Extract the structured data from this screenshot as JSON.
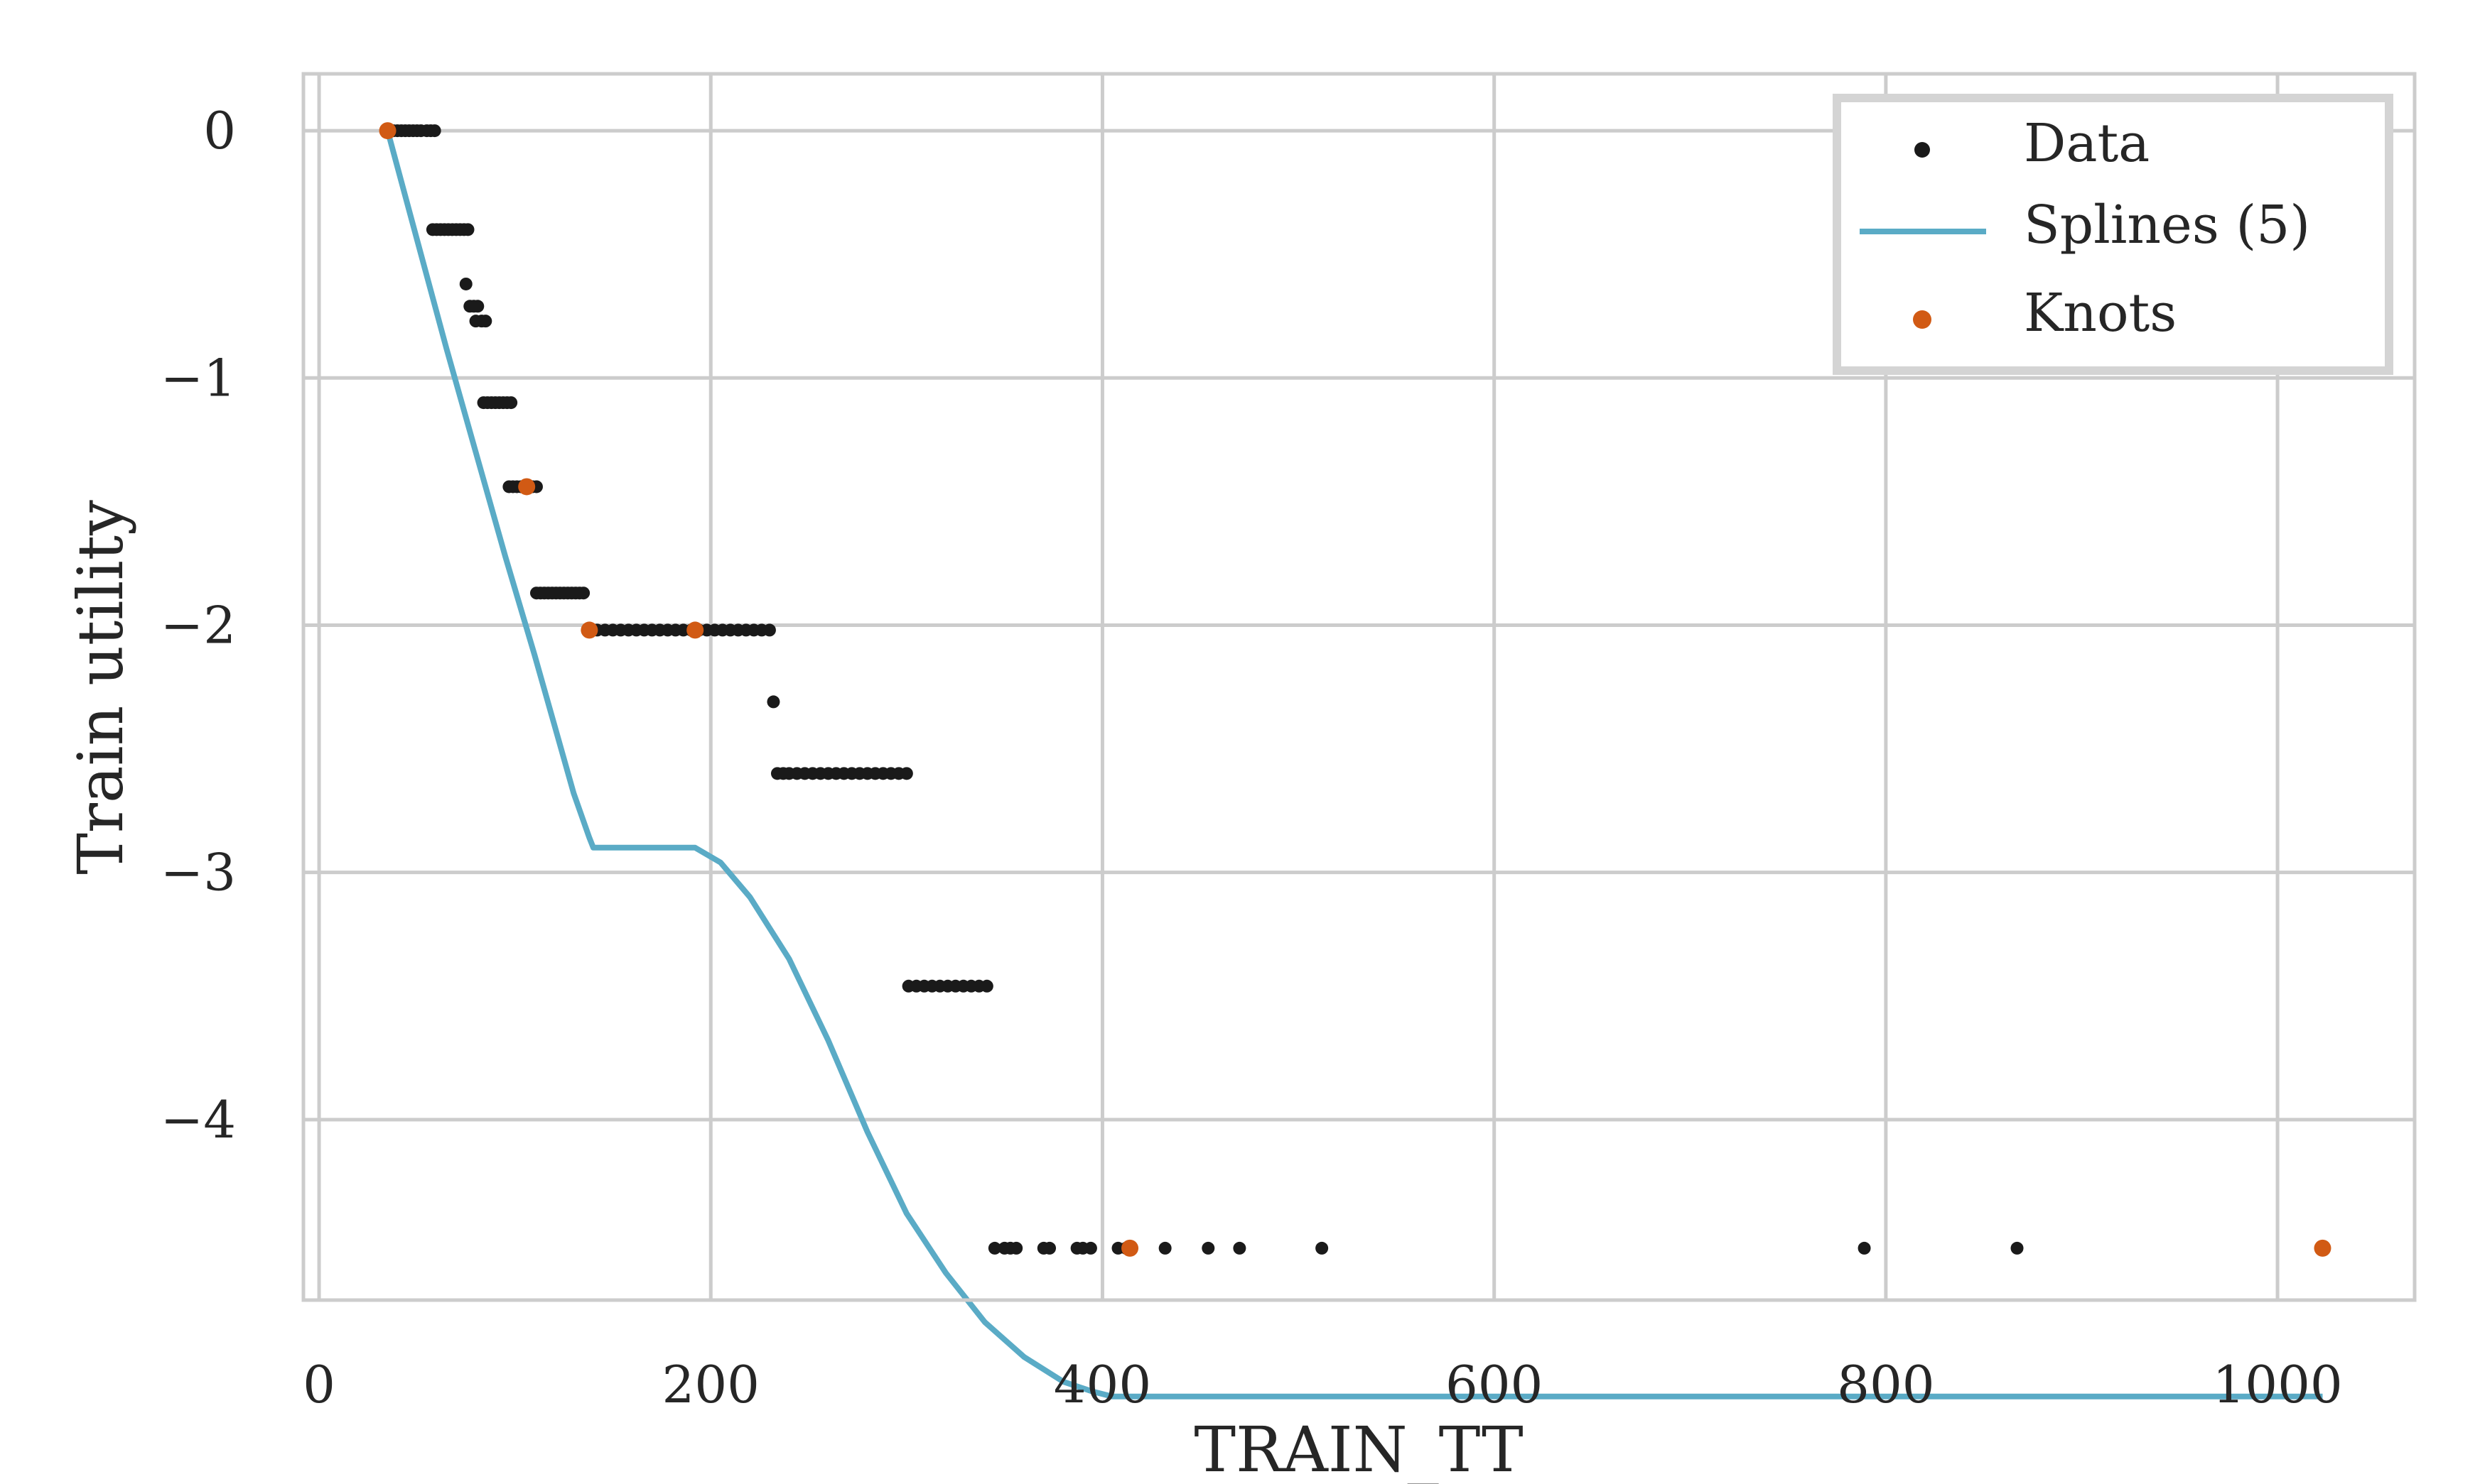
{
  "chart_data": {
    "type": "scatter",
    "title": "",
    "xlabel": "TRAIN_TT",
    "ylabel": "Train utility",
    "xlim": [
      -8,
      1070
    ],
    "ylim": [
      -4.73,
      0.23
    ],
    "xticks": [
      0,
      200,
      400,
      600,
      800,
      1000
    ],
    "xtick_labels": [
      "0",
      "200",
      "400",
      "600",
      "800",
      "1000"
    ],
    "yticks": [
      0,
      -1,
      -2,
      -3,
      -4
    ],
    "ytick_labels": [
      "0",
      "−1",
      "−2",
      "−3",
      "−4"
    ],
    "grid": true,
    "legend_position": "top-right",
    "colors": {
      "data": "#1a1a1a",
      "spline": "#5aabc6",
      "knots": "#d15a14",
      "grid": "#cccccc"
    },
    "series": [
      {
        "name": "Data",
        "kind": "scatter",
        "x": [
          35,
          38,
          40,
          42,
          44,
          46,
          48,
          50,
          52,
          55,
          57,
          59,
          58,
          60,
          62,
          64,
          66,
          68,
          70,
          72,
          74,
          76,
          75,
          77,
          79,
          81,
          80,
          83,
          85,
          84,
          86,
          88,
          90,
          92,
          94,
          96,
          98,
          97,
          99,
          101,
          103,
          105,
          107,
          109,
          111,
          111,
          113,
          115,
          117,
          119,
          121,
          123,
          125,
          127,
          129,
          131,
          133,
          135,
          139,
          142,
          146,
          150,
          154,
          158,
          162,
          166,
          170,
          174,
          178,
          182,
          186,
          190,
          194,
          198,
          202,
          206,
          210,
          214,
          218,
          222,
          226,
          230,
          232,
          234,
          237,
          240,
          244,
          248,
          252,
          256,
          260,
          264,
          268,
          272,
          276,
          280,
          284,
          288,
          292,
          296,
          300,
          301,
          305,
          309,
          313,
          317,
          321,
          325,
          329,
          333,
          337,
          341,
          345,
          350,
          353,
          356,
          370,
          373,
          387,
          390,
          394,
          408,
          412,
          432,
          454,
          470,
          512,
          789,
          867,
          1023
        ],
        "y": [
          0,
          0,
          0,
          0,
          0,
          0,
          0,
          0,
          0,
          0,
          0,
          0,
          -0.4,
          -0.4,
          -0.4,
          -0.4,
          -0.4,
          -0.4,
          -0.4,
          -0.4,
          -0.4,
          -0.4,
          -0.62,
          -0.71,
          -0.71,
          -0.71,
          -0.77,
          -0.77,
          -0.77,
          -1.1,
          -1.1,
          -1.1,
          -1.1,
          -1.1,
          -1.1,
          -1.1,
          -1.1,
          -1.44,
          -1.44,
          -1.44,
          -1.44,
          -1.44,
          -1.44,
          -1.44,
          -1.44,
          -1.87,
          -1.87,
          -1.87,
          -1.87,
          -1.87,
          -1.87,
          -1.87,
          -1.87,
          -1.87,
          -1.87,
          -1.87,
          -1.87,
          -1.87,
          -2.02,
          -2.02,
          -2.02,
          -2.02,
          -2.02,
          -2.02,
          -2.02,
          -2.02,
          -2.02,
          -2.02,
          -2.02,
          -2.02,
          -2.02,
          -2.02,
          -2.02,
          -2.02,
          -2.02,
          -2.02,
          -2.02,
          -2.02,
          -2.02,
          -2.02,
          -2.02,
          -2.02,
          -2.31,
          -2.6,
          -2.6,
          -2.6,
          -2.6,
          -2.6,
          -2.6,
          -2.6,
          -2.6,
          -2.6,
          -2.6,
          -2.6,
          -2.6,
          -2.6,
          -2.6,
          -2.6,
          -2.6,
          -2.6,
          -2.6,
          -3.46,
          -3.46,
          -3.46,
          -3.46,
          -3.46,
          -3.46,
          -3.46,
          -3.46,
          -3.46,
          -3.46,
          -3.46,
          -4.52,
          -4.52,
          -4.52,
          -4.52,
          -4.52,
          -4.52,
          -4.52,
          -4.52,
          -4.52,
          -4.52,
          -4.52,
          -4.52,
          -4.52,
          -4.52,
          -4.52,
          -4.52,
          -4.52,
          -4.52
        ]
      },
      {
        "name": "Splines (5)",
        "kind": "line",
        "x": [
          35,
          50,
          65,
          80,
          95,
          110,
          120,
          130,
          138,
          140,
          160,
          180,
          192,
          205,
          220,
          240,
          260,
          280,
          300,
          320,
          340,
          360,
          380,
          395,
          405,
          414,
          500,
          700,
          900,
          1023
        ],
        "y": [
          0,
          -0.44,
          -0.88,
          -1.3,
          -1.72,
          -2.12,
          -2.4,
          -2.68,
          -2.86,
          -2.9,
          -2.9,
          -2.9,
          -2.9,
          -2.96,
          -3.1,
          -3.35,
          -3.68,
          -4.05,
          -4.38,
          -4.62,
          -4.82,
          -4.96,
          -5.06,
          -5.1,
          -5.12,
          -5.12,
          -5.12,
          -5.12,
          -5.12,
          -5.12
        ]
      },
      {
        "name": "Knots",
        "kind": "scatter",
        "x": [
          35,
          106,
          138,
          192,
          414,
          1023
        ],
        "y": [
          0,
          -1.44,
          -2.02,
          -2.02,
          -4.52,
          -4.52
        ]
      }
    ]
  }
}
